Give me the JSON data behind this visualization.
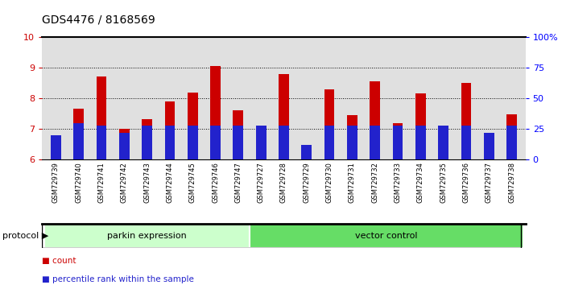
{
  "title": "GDS4476 / 8168569",
  "samples": [
    "GSM729739",
    "GSM729740",
    "GSM729741",
    "GSM729742",
    "GSM729743",
    "GSM729744",
    "GSM729745",
    "GSM729746",
    "GSM729747",
    "GSM729727",
    "GSM729728",
    "GSM729729",
    "GSM729730",
    "GSM729731",
    "GSM729732",
    "GSM729733",
    "GSM729734",
    "GSM729735",
    "GSM729736",
    "GSM729737",
    "GSM729738"
  ],
  "count_values": [
    6.5,
    7.65,
    8.72,
    7.0,
    7.32,
    7.9,
    8.2,
    9.05,
    7.6,
    6.6,
    8.78,
    6.15,
    8.3,
    7.45,
    8.55,
    7.2,
    8.15,
    6.55,
    8.5,
    6.55,
    7.48
  ],
  "percentile_values": [
    20,
    30,
    28,
    22,
    28,
    28,
    28,
    28,
    28,
    28,
    28,
    12,
    28,
    28,
    28,
    28,
    28,
    28,
    28,
    22,
    28
  ],
  "protocol_groups": [
    {
      "label": "parkin expression",
      "start": 0,
      "end": 9,
      "color": "#ccffcc"
    },
    {
      "label": "vector control",
      "start": 9,
      "end": 21,
      "color": "#66dd66"
    }
  ],
  "ylim_left": [
    6,
    10
  ],
  "ylim_right": [
    0,
    100
  ],
  "yticks_left": [
    6,
    7,
    8,
    9,
    10
  ],
  "yticks_right": [
    0,
    25,
    50,
    75,
    100
  ],
  "bar_color_red": "#cc0000",
  "bar_color_blue": "#2222cc",
  "tick_bg_color": "#d0d0d0",
  "title_fontsize": 10,
  "legend_count": "count",
  "legend_percentile": "percentile rank within the sample",
  "protocol_label": "protocol"
}
